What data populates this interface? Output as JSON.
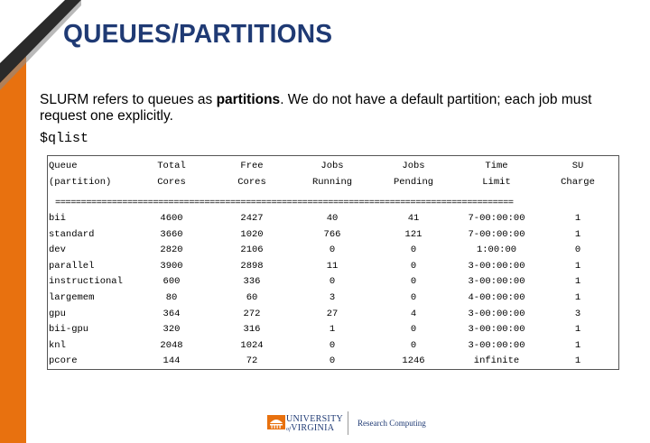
{
  "slide": {
    "title": "QUEUES/PARTITIONS",
    "intro_prefix": "SLURM refers to queues as ",
    "intro_bold": "partitions",
    "intro_suffix": ".  We do not have a default partition; each job must request one explicitly.",
    "command": "$qlist"
  },
  "table": {
    "header1": [
      "Queue",
      "Total",
      "Free",
      "Jobs",
      "Jobs",
      "Time",
      "SU"
    ],
    "header2": [
      "(partition)",
      "Cores",
      "Cores",
      "Running",
      "Pending",
      "Limit",
      "Charge"
    ],
    "separator": "=========================================================================================",
    "rows": [
      [
        "bii",
        "4600",
        "2427",
        "40",
        "41",
        "7-00:00:00",
        "1"
      ],
      [
        "standard",
        "3660",
        "1020",
        "766",
        "121",
        "7-00:00:00",
        "1"
      ],
      [
        "dev",
        "2820",
        "2106",
        "0",
        "0",
        "1:00:00",
        "0"
      ],
      [
        "parallel",
        "3900",
        "2898",
        "11",
        "0",
        "3-00:00:00",
        "1"
      ],
      [
        "instructional",
        "600",
        "336",
        "0",
        "0",
        "3-00:00:00",
        "1"
      ],
      [
        "largemem",
        "80",
        "60",
        "3",
        "0",
        "4-00:00:00",
        "1"
      ],
      [
        "gpu",
        "364",
        "272",
        "27",
        "4",
        "3-00:00:00",
        "3"
      ],
      [
        "bii-gpu",
        "320",
        "316",
        "1",
        "0",
        "3-00:00:00",
        "1"
      ],
      [
        "knl",
        "2048",
        "1024",
        "0",
        "0",
        "3-00:00:00",
        "1"
      ],
      [
        "pcore",
        "144",
        "72",
        "0",
        "1246",
        "infinite",
        "1"
      ]
    ]
  },
  "footer": {
    "logo_line1": "UNIVERSITY",
    "logo_line2": "VIRGINIA",
    "logo_of": "of",
    "dept": "Research Computing"
  },
  "colors": {
    "accent": "#e8710f",
    "title": "#1f3a74"
  }
}
